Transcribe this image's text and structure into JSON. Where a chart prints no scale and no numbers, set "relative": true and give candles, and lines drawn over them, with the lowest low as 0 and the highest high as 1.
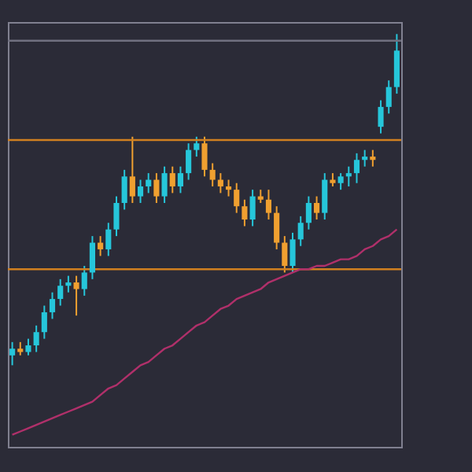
{
  "chart_data": {
    "type": "candlestick",
    "relative": true,
    "tick_labels": false,
    "grid": false,
    "categories": [
      null,
      null,
      null,
      null,
      null,
      null,
      null,
      null,
      null,
      null,
      null,
      null,
      null,
      null,
      null,
      null,
      null,
      null,
      null,
      null,
      null,
      null,
      null,
      null,
      null,
      null,
      null,
      null,
      null,
      null,
      null,
      null,
      null,
      null,
      null,
      null,
      null,
      null,
      null,
      null,
      null,
      null,
      null,
      null,
      null,
      null,
      null,
      null,
      null
    ],
    "ohlc": [
      [
        0.03,
        0.07,
        0,
        0.05
      ],
      [
        0.05,
        0.07,
        0.03,
        0.04
      ],
      [
        0.04,
        0.08,
        0.03,
        0.06
      ],
      [
        0.06,
        0.12,
        0.04,
        0.1
      ],
      [
        0.1,
        0.18,
        0.08,
        0.16
      ],
      [
        0.16,
        0.22,
        0.14,
        0.2
      ],
      [
        0.2,
        0.26,
        0.18,
        0.24
      ],
      [
        0.24,
        0.27,
        0.22,
        0.25
      ],
      [
        0.25,
        0.27,
        0.15,
        0.23
      ],
      [
        0.23,
        0.3,
        0.21,
        0.28
      ],
      [
        0.28,
        0.39,
        0.26,
        0.37
      ],
      [
        0.37,
        0.39,
        0.33,
        0.35
      ],
      [
        0.35,
        0.43,
        0.33,
        0.41
      ],
      [
        0.41,
        0.51,
        0.39,
        0.49
      ],
      [
        0.49,
        0.59,
        0.47,
        0.57
      ],
      [
        0.57,
        0.69,
        0.49,
        0.51
      ],
      [
        0.51,
        0.56,
        0.49,
        0.54
      ],
      [
        0.54,
        0.58,
        0.52,
        0.56
      ],
      [
        0.56,
        0.58,
        0.49,
        0.51
      ],
      [
        0.51,
        0.6,
        0.49,
        0.58
      ],
      [
        0.58,
        0.6,
        0.52,
        0.54
      ],
      [
        0.54,
        0.6,
        0.52,
        0.58
      ],
      [
        0.58,
        0.67,
        0.56,
        0.65
      ],
      [
        0.65,
        0.69,
        0.63,
        0.67
      ],
      [
        0.67,
        0.69,
        0.57,
        0.59
      ],
      [
        0.59,
        0.61,
        0.54,
        0.56
      ],
      [
        0.56,
        0.58,
        0.52,
        0.54
      ],
      [
        0.54,
        0.56,
        0.51,
        0.53
      ],
      [
        0.53,
        0.55,
        0.46,
        0.48
      ],
      [
        0.48,
        0.5,
        0.42,
        0.44
      ],
      [
        0.44,
        0.53,
        0.42,
        0.51
      ],
      [
        0.51,
        0.53,
        0.49,
        0.5
      ],
      [
        0.5,
        0.53,
        0.44,
        0.46
      ],
      [
        0.46,
        0.48,
        0.35,
        0.37
      ],
      [
        0.37,
        0.39,
        0.28,
        0.3
      ],
      [
        0.3,
        0.4,
        0.28,
        0.38
      ],
      [
        0.38,
        0.45,
        0.36,
        0.43
      ],
      [
        0.43,
        0.51,
        0.41,
        0.49
      ],
      [
        0.49,
        0.51,
        0.44,
        0.46
      ],
      [
        0.46,
        0.58,
        0.44,
        0.56
      ],
      [
        0.56,
        0.58,
        0.54,
        0.55
      ],
      [
        0.55,
        0.58,
        0.53,
        0.57
      ],
      [
        0.57,
        0.6,
        0.54,
        0.58
      ],
      [
        0.58,
        0.64,
        0.55,
        0.62
      ],
      [
        0.62,
        0.65,
        0.6,
        0.63
      ],
      [
        0.63,
        0.65,
        0.6,
        0.62
      ],
      [
        0.72,
        0.8,
        0.7,
        0.78
      ],
      [
        0.78,
        0.86,
        0.76,
        0.84
      ],
      [
        0.84,
        1.0,
        0.82,
        0.95
      ]
    ],
    "colors": [
      "#26c6da",
      "#f0a030",
      "#26c6da",
      "#26c6da",
      "#26c6da",
      "#26c6da",
      "#26c6da",
      "#26c6da",
      "#f0a030",
      "#26c6da",
      "#26c6da",
      "#f0a030",
      "#26c6da",
      "#26c6da",
      "#26c6da",
      "#f0a030",
      "#26c6da",
      "#26c6da",
      "#f0a030",
      "#26c6da",
      "#f0a030",
      "#26c6da",
      "#26c6da",
      "#26c6da",
      "#f0a030",
      "#f0a030",
      "#f0a030",
      "#f0a030",
      "#f0a030",
      "#f0a030",
      "#26c6da",
      "#f0a030",
      "#f0a030",
      "#f0a030",
      "#f0a030",
      "#26c6da",
      "#26c6da",
      "#26c6da",
      "#f0a030",
      "#26c6da",
      "#f0a030",
      "#26c6da",
      "#26c6da",
      "#26c6da",
      "#26c6da",
      "#f0a030",
      "#26c6da",
      "#26c6da",
      "#26c6da"
    ],
    "series": [
      {
        "type": "line",
        "color": "#b0306a",
        "values": [
          -0.21,
          -0.2,
          -0.19,
          -0.18,
          -0.17,
          -0.16,
          -0.15,
          -0.14,
          -0.13,
          -0.12,
          -0.11,
          -0.09,
          -0.07,
          -0.06,
          -0.04,
          -0.02,
          0,
          0.01,
          0.03,
          0.05,
          0.06,
          0.08,
          0.1,
          0.12,
          0.13,
          0.15,
          0.17,
          0.18,
          0.2,
          0.21,
          0.22,
          0.23,
          0.25,
          0.26,
          0.27,
          0.28,
          0.29,
          0.29,
          0.3,
          0.3,
          0.31,
          0.32,
          0.32,
          0.33,
          0.35,
          0.36,
          0.38,
          0.39,
          0.41
        ]
      }
    ],
    "ref_lines": [
      {
        "axis": "y",
        "value": 0.98,
        "color": "#707080"
      },
      {
        "axis": "y",
        "value": 0.68,
        "color": "#d08020"
      },
      {
        "axis": "y",
        "value": 0.29,
        "color": "#d08020"
      }
    ]
  }
}
